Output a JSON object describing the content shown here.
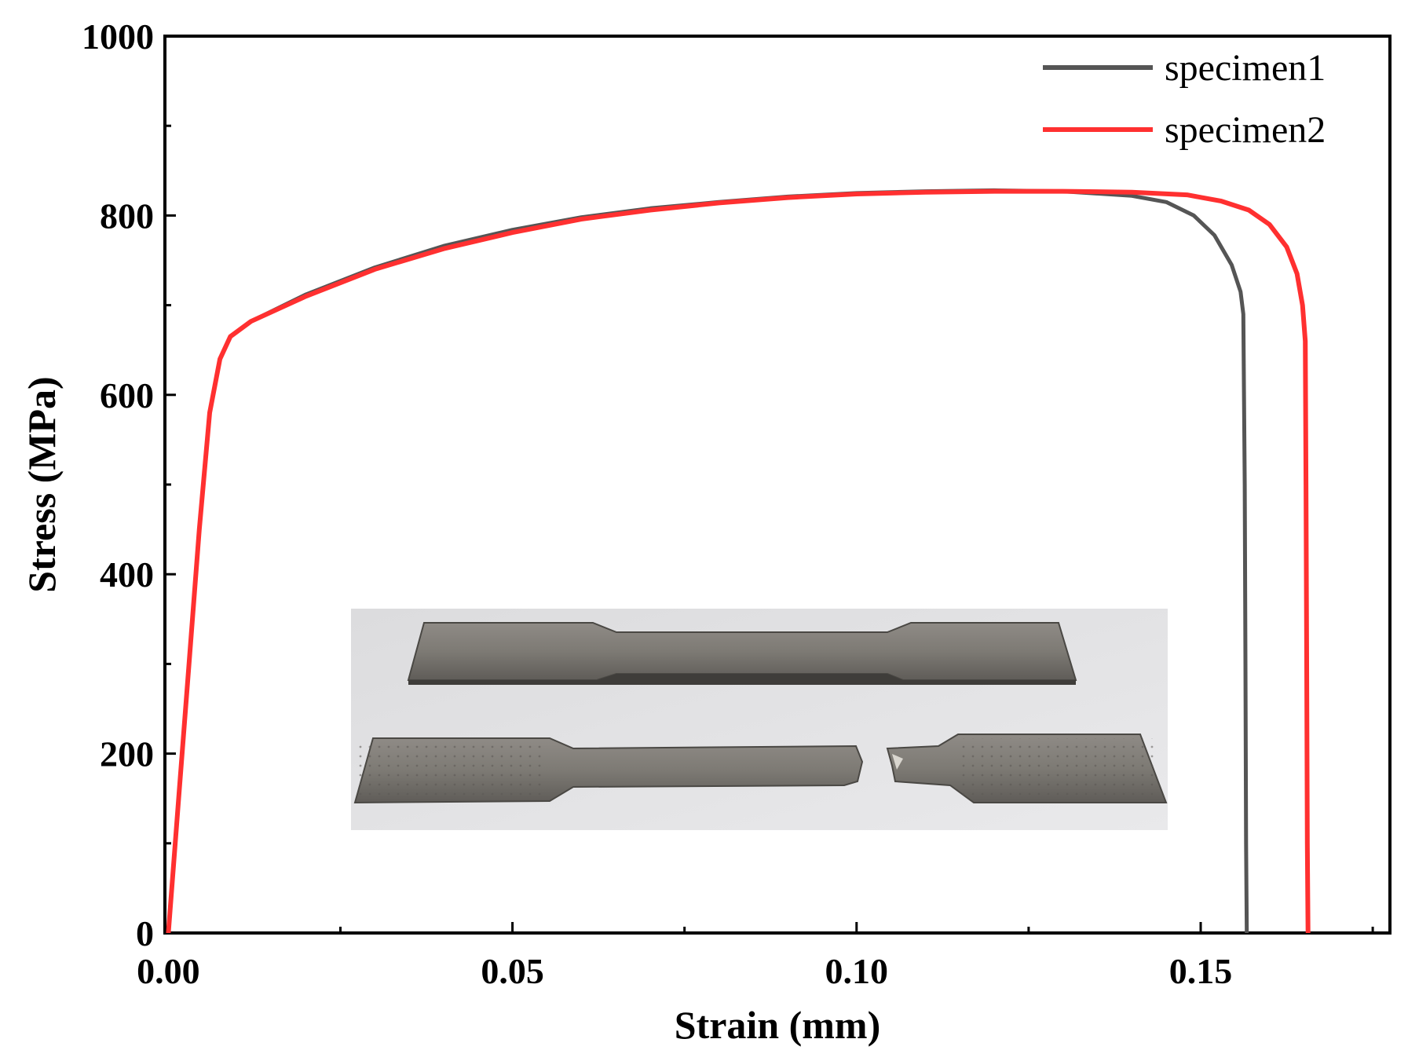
{
  "chart_data": {
    "type": "line",
    "title": "",
    "xlabel": "Strain (mm)",
    "ylabel": "Stress (MPa)",
    "xlim": [
      -0.0005,
      0.1775
    ],
    "ylim": [
      0,
      1000
    ],
    "x_ticks": [
      0.0,
      0.05,
      0.1,
      0.15
    ],
    "x_tick_labels": [
      "0.00",
      "0.05",
      "0.10",
      "0.15"
    ],
    "x_minor_ticks": [
      0.025,
      0.075,
      0.125,
      0.175
    ],
    "y_ticks": [
      0,
      200,
      400,
      600,
      800,
      1000
    ],
    "y_tick_labels": [
      "0",
      "200",
      "400",
      "600",
      "800",
      "1000"
    ],
    "y_minor_ticks": [
      100,
      300,
      500,
      700,
      900
    ],
    "grid": false,
    "legend_position": "top-right",
    "series": [
      {
        "name": "specimen1",
        "color": "#555555",
        "points": [
          [
            0.0,
            0
          ],
          [
            0.0015,
            150
          ],
          [
            0.003,
            300
          ],
          [
            0.0045,
            450
          ],
          [
            0.006,
            580
          ],
          [
            0.0075,
            640
          ],
          [
            0.009,
            665
          ],
          [
            0.012,
            682
          ],
          [
            0.02,
            712
          ],
          [
            0.03,
            742
          ],
          [
            0.04,
            766
          ],
          [
            0.05,
            784
          ],
          [
            0.06,
            798
          ],
          [
            0.07,
            808
          ],
          [
            0.08,
            815
          ],
          [
            0.09,
            821
          ],
          [
            0.1,
            825
          ],
          [
            0.11,
            827
          ],
          [
            0.12,
            828
          ],
          [
            0.13,
            827
          ],
          [
            0.14,
            822
          ],
          [
            0.145,
            815
          ],
          [
            0.149,
            800
          ],
          [
            0.152,
            778
          ],
          [
            0.1545,
            745
          ],
          [
            0.1558,
            715
          ],
          [
            0.1562,
            690
          ],
          [
            0.1564,
            500
          ],
          [
            0.1565,
            300
          ],
          [
            0.1566,
            100
          ],
          [
            0.1567,
            0
          ]
        ]
      },
      {
        "name": "specimen2",
        "color": "#ff3030",
        "points": [
          [
            0.0,
            0
          ],
          [
            0.0015,
            150
          ],
          [
            0.003,
            300
          ],
          [
            0.0045,
            450
          ],
          [
            0.006,
            580
          ],
          [
            0.0075,
            640
          ],
          [
            0.009,
            665
          ],
          [
            0.012,
            682
          ],
          [
            0.02,
            710
          ],
          [
            0.03,
            740
          ],
          [
            0.04,
            763
          ],
          [
            0.05,
            781
          ],
          [
            0.06,
            796
          ],
          [
            0.07,
            806
          ],
          [
            0.08,
            814
          ],
          [
            0.09,
            820
          ],
          [
            0.1,
            824
          ],
          [
            0.11,
            826
          ],
          [
            0.12,
            827
          ],
          [
            0.13,
            827
          ],
          [
            0.14,
            826
          ],
          [
            0.148,
            823
          ],
          [
            0.153,
            816
          ],
          [
            0.157,
            806
          ],
          [
            0.16,
            790
          ],
          [
            0.1625,
            765
          ],
          [
            0.164,
            735
          ],
          [
            0.1648,
            700
          ],
          [
            0.1652,
            660
          ],
          [
            0.1653,
            500
          ],
          [
            0.1654,
            300
          ],
          [
            0.1655,
            100
          ],
          [
            0.1656,
            0
          ]
        ]
      }
    ]
  },
  "inset": {
    "kind": "photo",
    "depicts": "tensile-test-specimens"
  },
  "colors": {
    "axis": "#000000",
    "specimen1": "#555555",
    "specimen2": "#ff3030"
  }
}
